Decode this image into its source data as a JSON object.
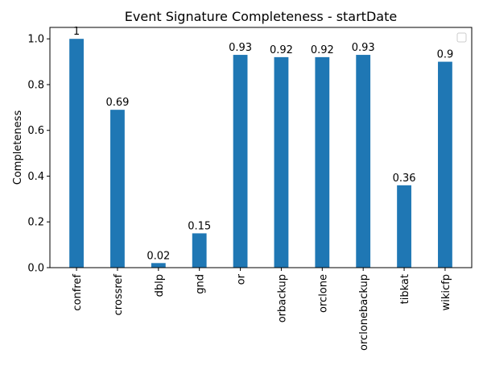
{
  "chart_data": {
    "type": "bar",
    "title": "Event Signature Completeness - startDate",
    "xlabel": "",
    "ylabel": "Completeness",
    "categories": [
      "confref",
      "crossref",
      "dblp",
      "gnd",
      "or",
      "orbackup",
      "orclone",
      "orclonebackup",
      "tibkat",
      "wikicfp"
    ],
    "values": [
      1,
      0.69,
      0.02,
      0.15,
      0.93,
      0.92,
      0.92,
      0.93,
      0.36,
      0.9
    ],
    "data_labels": [
      "1",
      "0.69",
      "0.02",
      "0.15",
      "0.93",
      "0.92",
      "0.92",
      "0.93",
      "0.36",
      "0.9"
    ],
    "ylim": [
      0,
      1.05
    ],
    "yticks": [
      0.0,
      0.2,
      0.4,
      0.6,
      0.8,
      1.0
    ],
    "ytick_labels": [
      "0.0",
      "0.2",
      "0.4",
      "0.6",
      "0.8",
      "1.0"
    ],
    "grid": false,
    "legend": {
      "placement": "top-right",
      "entries": []
    },
    "bar_color": "#1f77b4"
  }
}
